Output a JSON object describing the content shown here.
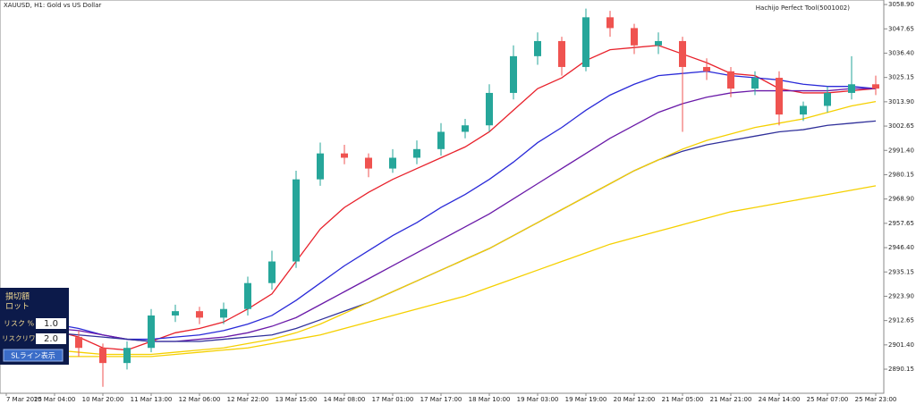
{
  "chart_data": {
    "type": "candlestick",
    "title": "XAUUSD, H1:  Gold vs US Dollar",
    "subtitle": "Hachijo Perfect Tool(5001002)",
    "categories": [
      "7 Mar 2025",
      null,
      "10 Mar 04:00",
      null,
      "10 Mar 20:00",
      null,
      "11 Mar 13:00",
      null,
      "12 Mar 06:00",
      null,
      "12 Mar 22:00",
      null,
      "13 Mar 15:00",
      null,
      "14 Mar 08:00",
      null,
      "17 Mar 01:00",
      null,
      "17 Mar 17:00",
      null,
      "18 Mar 10:00",
      null,
      "19 Mar 03:00",
      null,
      "19 Mar 19:00",
      null,
      "20 Mar 12:00",
      null,
      "21 Mar 05:00",
      null,
      "21 Mar 21:00",
      null,
      "24 Mar 14:00",
      null,
      "25 Mar 07:00",
      null,
      "25 Mar 23:00"
    ],
    "open": [
      2906,
      2910,
      2912,
      2905,
      2900,
      2893,
      2900,
      2915,
      2917,
      2914,
      2918,
      2930,
      2940,
      2978,
      2990,
      2988,
      2983,
      2988,
      2992,
      3000,
      3003,
      3018,
      3035,
      3042,
      3030,
      3053,
      3048,
      3040,
      3042,
      3030,
      3028,
      3020,
      3025,
      3008,
      3012,
      3018,
      3022
    ],
    "high": [
      2914,
      2916,
      2914,
      2908,
      2902,
      2903,
      2918,
      2920,
      2919,
      2921,
      2933,
      2945,
      2982,
      2995,
      2994,
      2990,
      2992,
      2996,
      3004,
      3006,
      3022,
      3040,
      3046,
      3044,
      3057,
      3056,
      3050,
      3046,
      3044,
      3034,
      3030,
      3028,
      3028,
      3014,
      3021,
      3035,
      3026
    ],
    "low": [
      2903,
      2906,
      2903,
      2896,
      2882,
      2890,
      2898,
      2912,
      2911,
      2911,
      2915,
      2927,
      2937,
      2975,
      2985,
      2979,
      2981,
      2985,
      2989,
      2997,
      3000,
      3015,
      3031,
      3026,
      3028,
      3044,
      3036,
      3036,
      3000,
      3024,
      3016,
      3017,
      3003,
      3005,
      3009,
      3015,
      3017
    ],
    "close": [
      2910,
      2912,
      2905,
      2900,
      2893,
      2900,
      2915,
      2917,
      2914,
      2918,
      2930,
      2940,
      2978,
      2990,
      2988,
      2983,
      2988,
      2992,
      3000,
      3003,
      3018,
      3035,
      3042,
      3030,
      3053,
      3048,
      3040,
      3042,
      3030,
      3028,
      3020,
      3025,
      3008,
      3012,
      3018,
      3022,
      3020
    ],
    "up_color": "#26a69a",
    "down_color": "#ef5350",
    "series": [
      {
        "color": "#e8212b",
        "values": [
          2910,
          2910,
          2908,
          2905,
          2900,
          2899,
          2903,
          2907,
          2909,
          2912,
          2918,
          2925,
          2940,
          2955,
          2965,
          2972,
          2978,
          2983,
          2988,
          2993,
          3000,
          3010,
          3020,
          3025,
          3033,
          3038,
          3039,
          3040,
          3036,
          3032,
          3027,
          3026,
          3020,
          3018,
          3018,
          3019,
          3020
        ]
      },
      {
        "color": "#2a2ad8",
        "values": [
          2912,
          2912,
          2911,
          2909,
          2906,
          2904,
          2904,
          2905,
          2906,
          2908,
          2911,
          2915,
          2922,
          2930,
          2938,
          2945,
          2952,
          2958,
          2965,
          2971,
          2978,
          2986,
          2995,
          3002,
          3010,
          3017,
          3022,
          3026,
          3027,
          3028,
          3026,
          3025,
          3024,
          3022,
          3021,
          3021,
          3020
        ]
      },
      {
        "color": "#6a1aa8",
        "values": [
          2910,
          2910,
          2909,
          2908,
          2906,
          2904,
          2903,
          2903,
          2904,
          2905,
          2907,
          2910,
          2914,
          2920,
          2926,
          2932,
          2938,
          2944,
          2950,
          2956,
          2962,
          2969,
          2976,
          2983,
          2990,
          2997,
          3003,
          3009,
          3013,
          3016,
          3018,
          3019,
          3019,
          3019,
          3019,
          3020,
          3020
        ]
      },
      {
        "color": "#30309a",
        "values": [
          2908,
          2908,
          2907,
          2906,
          2905,
          2904,
          2903,
          2903,
          2903,
          2904,
          2905,
          2906,
          2909,
          2913,
          2917,
          2921,
          2926,
          2931,
          2936,
          2941,
          2946,
          2952,
          2958,
          2964,
          2970,
          2976,
          2982,
          2987,
          2991,
          2994,
          2996,
          2998,
          3000,
          3001,
          3003,
          3004,
          3005
        ]
      },
      {
        "color": "#f5d000",
        "values": [
          2900,
          2899,
          2899,
          2898,
          2897,
          2897,
          2897,
          2898,
          2899,
          2900,
          2902,
          2904,
          2907,
          2911,
          2916,
          2921,
          2926,
          2931,
          2936,
          2941,
          2946,
          2952,
          2958,
          2964,
          2970,
          2976,
          2982,
          2987,
          2992,
          2996,
          2999,
          3002,
          3004,
          3006,
          3009,
          3012,
          3014
        ]
      },
      {
        "color": "#f5d000",
        "values": [
          2896,
          2896,
          2896,
          2896,
          2896,
          2896,
          2896,
          2897,
          2898,
          2899,
          2900,
          2902,
          2904,
          2906,
          2909,
          2912,
          2915,
          2918,
          2921,
          2924,
          2928,
          2932,
          2936,
          2940,
          2944,
          2948,
          2951,
          2954,
          2957,
          2960,
          2963,
          2965,
          2967,
          2969,
          2971,
          2973,
          2975
        ]
      }
    ],
    "ylim": [
      2879,
      3061
    ],
    "yticks": [
      {
        "value": 3058.9,
        "label": "3058.90"
      },
      3047.65,
      {
        "value": 3036.4,
        "label": "3036.40"
      },
      3025.15,
      {
        "value": 3013.9,
        "label": "3013.90"
      },
      3002.65,
      {
        "value": 2991.4,
        "label": "2991.40"
      },
      2980.15,
      {
        "value": 2968.9,
        "label": "2968.90"
      },
      2957.65,
      {
        "value": 2946.4,
        "label": "2946.40"
      },
      2935.15,
      {
        "value": 2923.9,
        "label": "2923.90"
      },
      2912.65,
      {
        "value": 2901.4,
        "label": "2901.40"
      },
      2890.15
    ]
  },
  "panel": {
    "loss": "損切額",
    "lot": "ロット",
    "risk": "リスク %",
    "risk_value": "1.0",
    "rr": "リスクリワード",
    "rr_value": "2.0",
    "button": "SLライン表示"
  }
}
